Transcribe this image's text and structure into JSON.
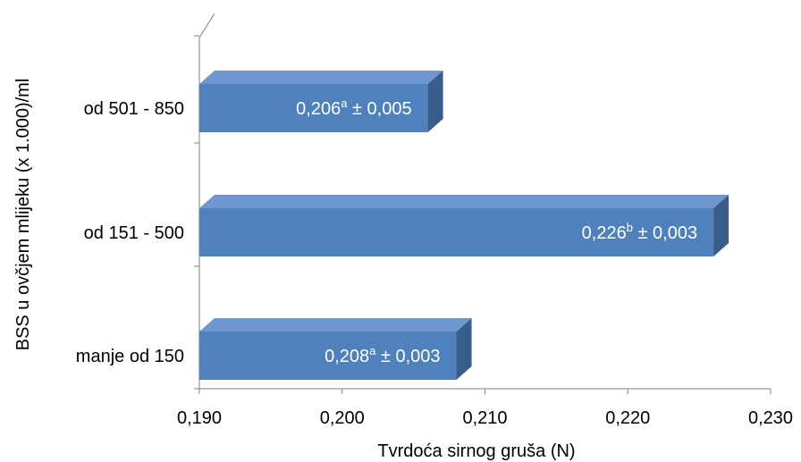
{
  "chart_data": {
    "type": "bar",
    "orientation": "horizontal",
    "style": "3d",
    "categories": [
      "manje od 150",
      "od 151 - 500",
      "od 501 - 850"
    ],
    "values": [
      0.208,
      0.226,
      0.206
    ],
    "data_labels": [
      {
        "value": "0,208",
        "sup": "a",
        "suffix": " ± 0,003"
      },
      {
        "value": "0,226",
        "sup": "b",
        "suffix": " ± 0,003"
      },
      {
        "value": "0,206",
        "sup": "a",
        "suffix": " ± 0,005"
      }
    ],
    "xlim": [
      0.19,
      0.23
    ],
    "x_ticks": [
      "0,190",
      "0,200",
      "0,210",
      "0,220",
      "0,230"
    ],
    "xlabel": "Tvrdoća sirnog gruša (N)",
    "ylabel": "BSS u ovčjem mlijeku (x 1.000)/ml",
    "grid": false,
    "legend": "none",
    "colors": {
      "bar_front": "#4f81bd",
      "bar_top": "#6f97cf",
      "bar_side": "#385d8a",
      "axis": "#808080"
    }
  }
}
